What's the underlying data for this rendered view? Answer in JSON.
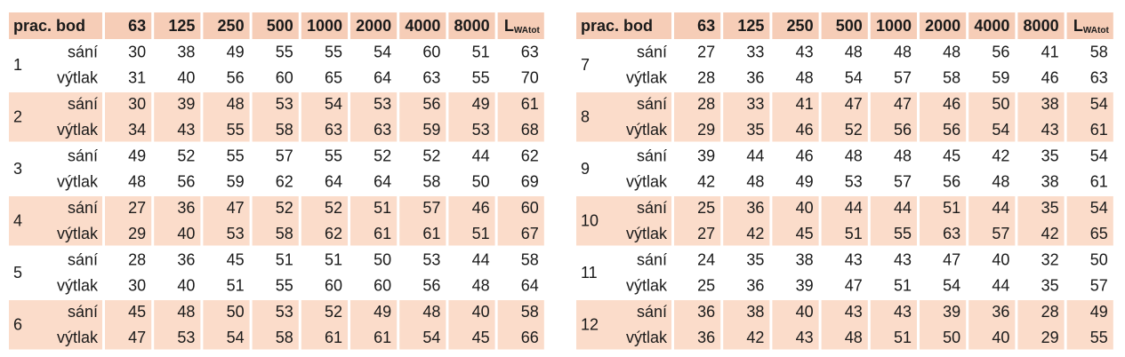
{
  "tables": [
    {
      "header": {
        "label": "prac. bod",
        "bands": [
          "63",
          "125",
          "250",
          "500",
          "1000",
          "2000",
          "4000",
          "8000"
        ],
        "total": {
          "main": "L",
          "sub": "WAtot"
        }
      },
      "groups": [
        {
          "id": "1",
          "rows": [
            {
              "label": "sání",
              "values": [
                30,
                38,
                49,
                55,
                55,
                54,
                60,
                51,
                63
              ]
            },
            {
              "label": "výtlak",
              "values": [
                31,
                40,
                56,
                60,
                65,
                64,
                63,
                55,
                70
              ]
            }
          ]
        },
        {
          "id": "2",
          "rows": [
            {
              "label": "sání",
              "values": [
                30,
                39,
                48,
                53,
                54,
                53,
                56,
                49,
                61
              ]
            },
            {
              "label": "výtlak",
              "values": [
                34,
                43,
                55,
                58,
                63,
                63,
                59,
                53,
                68
              ]
            }
          ]
        },
        {
          "id": "3",
          "rows": [
            {
              "label": "sání",
              "values": [
                49,
                52,
                55,
                57,
                55,
                52,
                52,
                44,
                62
              ]
            },
            {
              "label": "výtlak",
              "values": [
                48,
                56,
                59,
                62,
                64,
                64,
                58,
                50,
                69
              ]
            }
          ]
        },
        {
          "id": "4",
          "rows": [
            {
              "label": "sání",
              "values": [
                27,
                36,
                47,
                52,
                52,
                51,
                57,
                46,
                60
              ]
            },
            {
              "label": "výtlak",
              "values": [
                29,
                40,
                53,
                58,
                62,
                61,
                61,
                51,
                67
              ]
            }
          ]
        },
        {
          "id": "5",
          "rows": [
            {
              "label": "sání",
              "values": [
                28,
                36,
                45,
                51,
                51,
                50,
                53,
                44,
                58
              ]
            },
            {
              "label": "výtlak",
              "values": [
                30,
                40,
                51,
                55,
                60,
                60,
                56,
                48,
                64
              ]
            }
          ]
        },
        {
          "id": "6",
          "rows": [
            {
              "label": "sání",
              "values": [
                45,
                48,
                50,
                53,
                52,
                49,
                48,
                40,
                58
              ]
            },
            {
              "label": "výtlak",
              "values": [
                47,
                53,
                54,
                58,
                61,
                61,
                54,
                45,
                66
              ]
            }
          ]
        }
      ]
    },
    {
      "header": {
        "label": "prac. bod",
        "bands": [
          "63",
          "125",
          "250",
          "500",
          "1000",
          "2000",
          "4000",
          "8000"
        ],
        "total": {
          "main": "L",
          "sub": "WAtot"
        }
      },
      "groups": [
        {
          "id": "7",
          "rows": [
            {
              "label": "sání",
              "values": [
                27,
                33,
                43,
                48,
                48,
                48,
                56,
                41,
                58
              ]
            },
            {
              "label": "výtlak",
              "values": [
                28,
                36,
                48,
                54,
                57,
                58,
                59,
                46,
                63
              ]
            }
          ]
        },
        {
          "id": "8",
          "rows": [
            {
              "label": "sání",
              "values": [
                28,
                33,
                41,
                47,
                47,
                46,
                50,
                38,
                54
              ]
            },
            {
              "label": "výtlak",
              "values": [
                29,
                35,
                46,
                52,
                56,
                56,
                54,
                43,
                61
              ]
            }
          ]
        },
        {
          "id": "9",
          "rows": [
            {
              "label": "sání",
              "values": [
                39,
                44,
                46,
                48,
                48,
                45,
                42,
                35,
                54
              ]
            },
            {
              "label": "výtlak",
              "values": [
                42,
                48,
                49,
                53,
                57,
                56,
                48,
                38,
                61
              ]
            }
          ]
        },
        {
          "id": "10",
          "rows": [
            {
              "label": "sání",
              "values": [
                25,
                36,
                40,
                44,
                44,
                51,
                44,
                35,
                54
              ]
            },
            {
              "label": "výtlak",
              "values": [
                27,
                42,
                45,
                51,
                55,
                63,
                57,
                42,
                65
              ]
            }
          ]
        },
        {
          "id": "11",
          "rows": [
            {
              "label": "sání",
              "values": [
                24,
                35,
                38,
                43,
                43,
                47,
                40,
                32,
                50
              ]
            },
            {
              "label": "výtlak",
              "values": [
                25,
                36,
                39,
                47,
                51,
                54,
                44,
                35,
                57
              ]
            }
          ]
        },
        {
          "id": "12",
          "rows": [
            {
              "label": "sání",
              "values": [
                36,
                38,
                40,
                43,
                43,
                39,
                36,
                28,
                49
              ]
            },
            {
              "label": "výtlak",
              "values": [
                36,
                42,
                43,
                48,
                51,
                50,
                40,
                29,
                55
              ]
            }
          ]
        }
      ]
    }
  ]
}
